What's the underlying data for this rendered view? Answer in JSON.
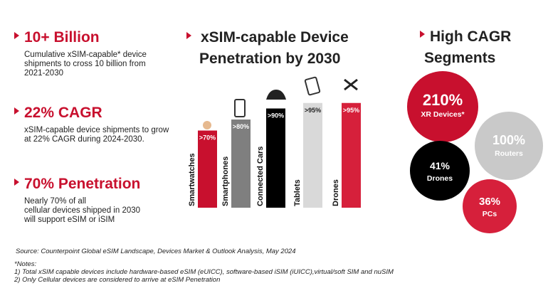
{
  "left": [
    {
      "heading": "10+ Billion",
      "body": [
        "Cumulative xSIM-capable* device",
        "shipments to cross 10 billion from",
        "2021-2030"
      ]
    },
    {
      "heading": "22% CAGR",
      "body": [
        "xSIM-capable device shipments to grow",
        "at 22% CAGR during 2024-2030."
      ]
    },
    {
      "heading": "70% Penetration",
      "body": [
        "Nearly 70% of all",
        "cellular devices shipped in 2030",
        "will support eSIM or iSIM"
      ]
    }
  ],
  "chart_data": {
    "type": "bar",
    "title": [
      "xSIM-capable Device",
      "Penetration by 2030"
    ],
    "categories": [
      "Smartwatches",
      "Smartphones",
      "Connected Cars",
      "Tablets",
      "Drones"
    ],
    "values": [
      70,
      80,
      90,
      95,
      95
    ],
    "value_labels": [
      ">70%",
      ">80%",
      ">90%",
      ">95%",
      ">95%"
    ],
    "colors": [
      "#c8102e",
      "#7f7f7f",
      "#000000",
      "#d9d9d9",
      "#d6203b"
    ]
  },
  "cagr": {
    "title": [
      "High CAGR",
      "Segments"
    ],
    "bubbles": [
      {
        "value": "210%",
        "label": "XR Devices*",
        "color": "#c8102e"
      },
      {
        "value": "100%",
        "label": "Routers",
        "color": "#c9c9c9"
      },
      {
        "value": "41%",
        "label": "Drones",
        "color": "#000000"
      },
      {
        "value": "36%",
        "label": "PCs",
        "color": "#d6203b"
      }
    ]
  },
  "footer": {
    "source": "Source: Counterpoint Global eSIM Landscape, Devices Market & Outlook Analysis, May 2024",
    "notes": [
      "*Notes:",
      " 1) Total xSIM capable devices include hardware-based eSIM (eUICC), software-based iSIM (iUICC),virtual/soft SIM and nuSIM",
      "2) Only Cellular devices are considered to arrive at eSIM Penetration"
    ]
  }
}
